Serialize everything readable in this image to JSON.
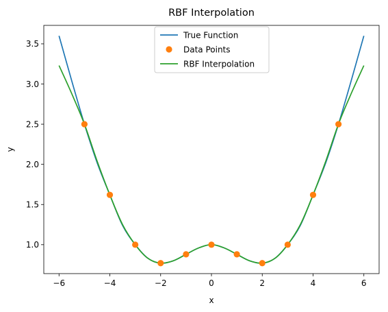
{
  "chart_data": {
    "type": "line",
    "title": "RBF Interpolation",
    "xlabel": "x",
    "ylabel": "y",
    "xlim": [
      -6.6,
      6.6
    ],
    "ylim": [
      0.64,
      3.73
    ],
    "xticks": [
      -6,
      -4,
      -2,
      0,
      2,
      4,
      6
    ],
    "xtick_labels": [
      "−6",
      "−4",
      "−2",
      "0",
      "2",
      "4",
      "6"
    ],
    "yticks": [
      1.0,
      1.5,
      2.0,
      2.5,
      3.0,
      3.5
    ],
    "ytick_labels": [
      "1.0",
      "1.5",
      "2.0",
      "2.5",
      "3.0",
      "3.5"
    ],
    "grid": false,
    "legend_position": "top-center",
    "series": [
      {
        "name": "True Function",
        "style": "line",
        "color": "#1f77b4",
        "x": [
          -6,
          -5.5,
          -5,
          -4.5,
          -4,
          -3.5,
          -3,
          -2.5,
          -2,
          -1.5,
          -1,
          -0.5,
          0,
          0.5,
          1,
          1.5,
          2,
          2.5,
          3,
          3.5,
          4,
          4.5,
          5,
          5.5,
          6
        ],
        "y": [
          3.6,
          3.04,
          2.5,
          2.02,
          1.62,
          1.24,
          1.0,
          0.83,
          0.77,
          0.8,
          0.88,
          0.96,
          1.0,
          0.96,
          0.88,
          0.8,
          0.77,
          0.83,
          1.0,
          1.24,
          1.62,
          2.02,
          2.5,
          3.04,
          3.6
        ]
      },
      {
        "name": "Data Points",
        "style": "scatter",
        "color": "#ff7f0e",
        "x": [
          -5,
          -4,
          -3,
          -2,
          -1,
          0,
          1,
          2,
          3,
          4,
          5
        ],
        "y": [
          2.5,
          1.62,
          1.0,
          0.77,
          0.88,
          1.0,
          0.88,
          0.77,
          1.0,
          1.62,
          2.5
        ]
      },
      {
        "name": "RBF Interpolation",
        "style": "line",
        "color": "#2ca02c",
        "x": [
          -6,
          -5.5,
          -5,
          -4.5,
          -4,
          -3.5,
          -3,
          -2.5,
          -2,
          -1.5,
          -1,
          -0.5,
          0,
          0.5,
          1,
          1.5,
          2,
          2.5,
          3,
          3.5,
          4,
          4.5,
          5,
          5.5,
          6
        ],
        "y": [
          3.23,
          2.88,
          2.5,
          2.04,
          1.62,
          1.25,
          1.0,
          0.83,
          0.77,
          0.8,
          0.88,
          0.96,
          1.0,
          0.96,
          0.88,
          0.8,
          0.77,
          0.83,
          1.0,
          1.25,
          1.62,
          2.04,
          2.5,
          2.88,
          3.23
        ]
      }
    ]
  }
}
